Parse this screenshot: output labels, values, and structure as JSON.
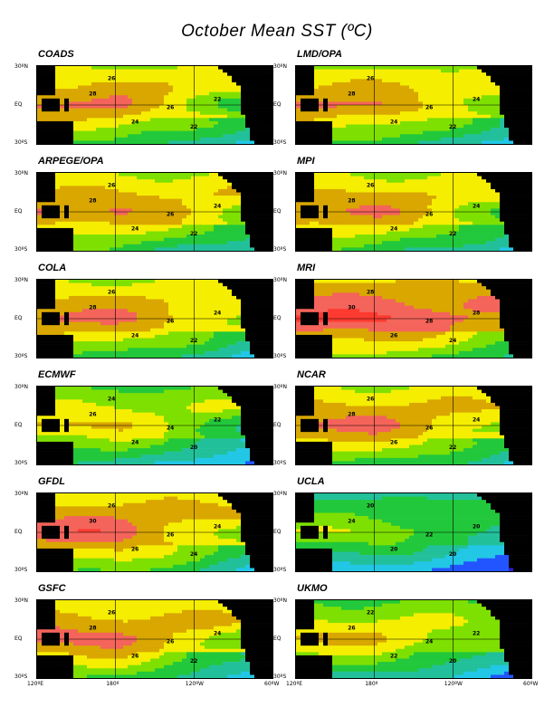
{
  "figure": {
    "title": "October Mean SST (ºC)",
    "lat_labels": [
      "30ºN",
      "EQ",
      "30ºS"
    ],
    "lon_labels": [
      "120ºE",
      "180º",
      "120ºW",
      "60ºW"
    ],
    "color_scale": [
      {
        "min": 30,
        "color": "#ff3a30"
      },
      {
        "min": 28,
        "color": "#f4645a"
      },
      {
        "min": 26,
        "color": "#d9a700"
      },
      {
        "min": 24,
        "color": "#f5ee00"
      },
      {
        "min": 22,
        "color": "#7ee000"
      },
      {
        "min": 20,
        "color": "#22c83b"
      },
      {
        "min": 18,
        "color": "#22c09a"
      },
      {
        "min": 16,
        "color": "#22c7e6"
      },
      {
        "min": 14,
        "color": "#2255ff"
      },
      {
        "min": 12,
        "color": "#2a1ecc"
      },
      {
        "min": 0,
        "color": "#cc22cc"
      }
    ],
    "land_color": "#000000",
    "contour_labels": [
      "20",
      "22",
      "24",
      "26",
      "28",
      "30"
    ]
  },
  "panels": [
    {
      "name": "COADS",
      "warm_pool": 28.6,
      "cold_tongue": 18,
      "south": 14,
      "seed": 1
    },
    {
      "name": "LMD/OPA",
      "warm_pool": 28.4,
      "cold_tongue": 20,
      "south": 14,
      "seed": 2
    },
    {
      "name": "ARPEGE/OPA",
      "warm_pool": 28.5,
      "cold_tongue": 22,
      "south": 16,
      "seed": 3
    },
    {
      "name": "MPI",
      "warm_pool": 28.5,
      "cold_tongue": 20,
      "south": 14,
      "seed": 4
    },
    {
      "name": "COLA",
      "warm_pool": 28.6,
      "cold_tongue": 22,
      "south": 14,
      "seed": 5
    },
    {
      "name": "MRI",
      "warm_pool": 30.5,
      "cold_tongue": 26,
      "south": 18,
      "seed": 6
    },
    {
      "name": "ECMWF",
      "warm_pool": 26.5,
      "cold_tongue": 18,
      "south": 13,
      "seed": 7
    },
    {
      "name": "NCAR",
      "warm_pool": 28.8,
      "cold_tongue": 22,
      "south": 16,
      "seed": 8
    },
    {
      "name": "GFDL",
      "warm_pool": 29.5,
      "cold_tongue": 20,
      "south": 14,
      "seed": 9
    },
    {
      "name": "UCLA",
      "warm_pool": 24.0,
      "cold_tongue": 17,
      "south": 14,
      "seed": 10
    },
    {
      "name": "GSFC",
      "warm_pool": 29.0,
      "cold_tongue": 20,
      "south": 12,
      "seed": 11
    },
    {
      "name": "UKMO",
      "warm_pool": 26.5,
      "cold_tongue": 20,
      "south": 14,
      "seed": 12
    }
  ]
}
